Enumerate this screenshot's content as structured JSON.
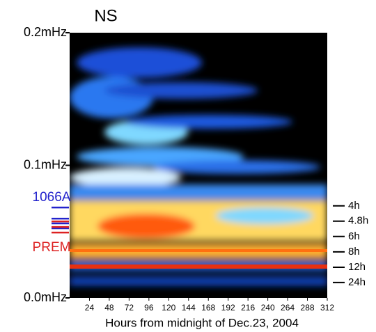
{
  "chart_data": {
    "type": "spectrogram",
    "title": "NS",
    "xlabel": "Hours from midnight of Dec.23, 2004",
    "xlim": [
      0,
      312
    ],
    "xticks": [
      24,
      48,
      72,
      96,
      120,
      144,
      168,
      192,
      216,
      240,
      264,
      288,
      312
    ],
    "ylim": [
      0,
      0.2
    ],
    "yticks": [
      {
        "value": 0,
        "label": "0.0mHz"
      },
      {
        "value": 0.1,
        "label": "0.1mHz"
      },
      {
        "value": 0.2,
        "label": "0.2mHz"
      }
    ],
    "y2lim": [
      0,
      0.2
    ],
    "y2ticks": [
      {
        "value": 0.0694,
        "label": "4h"
      },
      {
        "value": 0.0579,
        "label": "4.8h"
      },
      {
        "value": 0.0463,
        "label": "6h"
      },
      {
        "value": 0.0347,
        "label": "8h"
      },
      {
        "value": 0.0231,
        "label": "12h"
      },
      {
        "value": 0.0116,
        "label": "24h"
      }
    ],
    "series": [
      {
        "name": "1066A",
        "color": "#2222cc",
        "values": [
          0.0682,
          0.0598,
          0.0562,
          0.0525
        ]
      },
      {
        "name": "PREM",
        "color": "#dd2222",
        "values": [
          0.0577,
          0.0535,
          0.0493
        ]
      }
    ]
  }
}
